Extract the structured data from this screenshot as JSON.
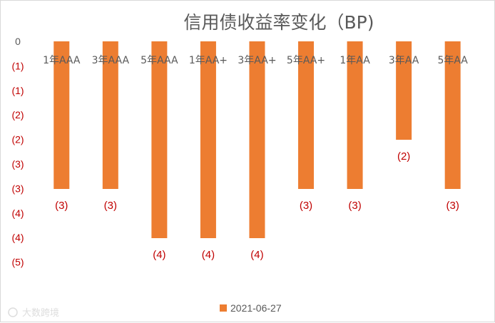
{
  "chart_data": {
    "type": "bar",
    "title": "信用债收益率变化（BP)",
    "categories": [
      "1年AAA",
      "3年AAA",
      "5年AAA",
      "1年AA+",
      "3年AA+",
      "5年AA+",
      "1年AA",
      "3年AA",
      "5年AA"
    ],
    "series": [
      {
        "name": "2021-06-27",
        "values": [
          -3,
          -3,
          -4,
          -4,
          -4,
          -3,
          -3,
          -2,
          -3
        ],
        "labels": [
          "(3)",
          "(3)",
          "(4)",
          "(4)",
          "(4)",
          "(3)",
          "(3)",
          "(2)",
          "(3)"
        ]
      }
    ],
    "ytick_labels": [
      "0",
      "(1)",
      "(1)",
      "(2)",
      "(2)",
      "(3)",
      "(3)",
      "(4)",
      "(4)",
      "(5)"
    ],
    "ylim": [
      -4.5,
      0
    ],
    "grid": false,
    "legend_position": "bottom",
    "colors": {
      "bar": "#ED7D31",
      "title": "#595959",
      "negative_label": "#C00000",
      "zero_label": "#595959",
      "text": "#595959"
    }
  },
  "watermark": "大数跨境"
}
